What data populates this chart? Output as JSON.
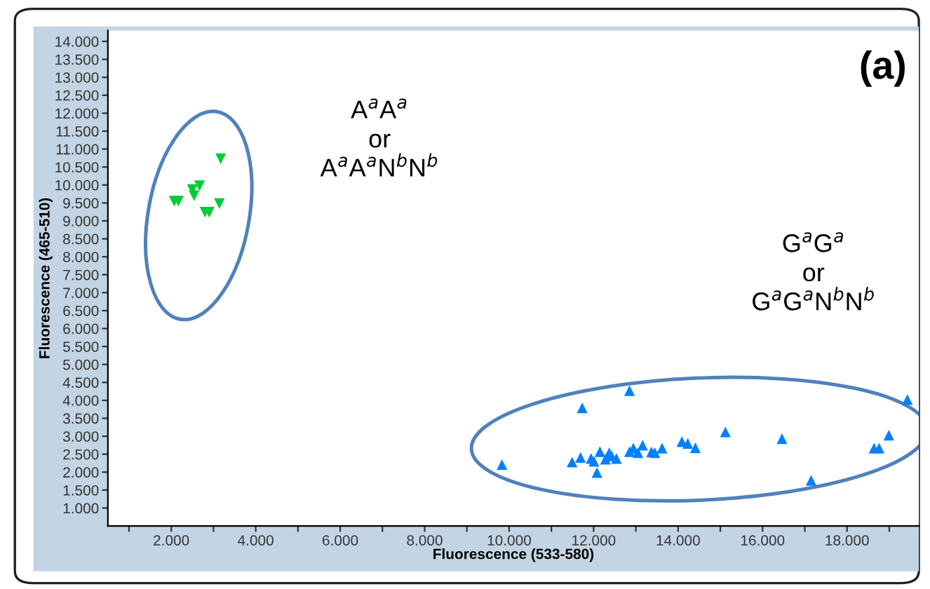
{
  "chart_data": {
    "type": "scatter",
    "xlabel": "Fluorescence (533-580)",
    "ylabel": "Fluorescence (465-510)",
    "xlim": [
      500,
      19700
    ],
    "ylim": [
      500,
      14300
    ],
    "xticks": [
      {
        "value": 1000,
        "label": null
      },
      {
        "value": 2000,
        "label": "2.000"
      },
      {
        "value": 3000,
        "label": null
      },
      {
        "value": 4000,
        "label": "4.000"
      },
      {
        "value": 5000,
        "label": null
      },
      {
        "value": 6000,
        "label": "6.000"
      },
      {
        "value": 7000,
        "label": null
      },
      {
        "value": 8000,
        "label": "8.000"
      },
      {
        "value": 9000,
        "label": null
      },
      {
        "value": 10000,
        "label": "10.000"
      },
      {
        "value": 11000,
        "label": null
      },
      {
        "value": 12000,
        "label": "12.000"
      },
      {
        "value": 13000,
        "label": null
      },
      {
        "value": 14000,
        "label": "14.000"
      },
      {
        "value": 15000,
        "label": null
      },
      {
        "value": 16000,
        "label": "16.000"
      },
      {
        "value": 17000,
        "label": null
      },
      {
        "value": 18000,
        "label": "18.000"
      },
      {
        "value": 19000,
        "label": null
      }
    ],
    "yticks": [
      {
        "value": 1000,
        "label": "1.000"
      },
      {
        "value": 1500,
        "label": "1.500"
      },
      {
        "value": 2000,
        "label": "2.000"
      },
      {
        "value": 2500,
        "label": "2.500"
      },
      {
        "value": 3000,
        "label": "3.000"
      },
      {
        "value": 3500,
        "label": "3.500"
      },
      {
        "value": 4000,
        "label": "4.000"
      },
      {
        "value": 4500,
        "label": "4.500"
      },
      {
        "value": 5000,
        "label": "5.000"
      },
      {
        "value": 5500,
        "label": "5.500"
      },
      {
        "value": 6000,
        "label": "6.000"
      },
      {
        "value": 6500,
        "label": "6.500"
      },
      {
        "value": 7000,
        "label": "7.000"
      },
      {
        "value": 7500,
        "label": "7.500"
      },
      {
        "value": 8000,
        "label": "8.000"
      },
      {
        "value": 8500,
        "label": "8.500"
      },
      {
        "value": 9000,
        "label": "9.000"
      },
      {
        "value": 9500,
        "label": "9.500"
      },
      {
        "value": 10000,
        "label": "10.000"
      },
      {
        "value": 10500,
        "label": "10.500"
      },
      {
        "value": 11000,
        "label": "11.000"
      },
      {
        "value": 11500,
        "label": "11.500"
      },
      {
        "value": 12000,
        "label": "12.000"
      },
      {
        "value": 12500,
        "label": "12.500"
      },
      {
        "value": 13000,
        "label": "13.000"
      },
      {
        "value": 13500,
        "label": "13.500"
      },
      {
        "value": 14000,
        "label": "14.000"
      }
    ],
    "grid": false,
    "legend": false,
    "annotations": [
      "(a)",
      "A$^{a}$A$^{a}$\nor\nA$^{a}$A$^{a}$N$^{b}$N$^{b}$",
      "G$^{a}$G$^{a}$\nor\nG$^{a}$G$^{a}$N$^{b}$N$^{b}$"
    ],
    "series": [
      {
        "color": "#00cc33",
        "marker": "triangle_down",
        "x": [
          3170,
          2170,
          2070,
          2500,
          2670,
          2540,
          2800,
          2900,
          3140
        ],
        "values": [
          10730,
          9550,
          9550,
          9870,
          9980,
          9700,
          9240,
          9240,
          9480
        ]
      },
      {
        "color": "#0080ff",
        "marker": "triangle",
        "x": [
          9830,
          11490,
          11690,
          11730,
          11940,
          12010,
          12080,
          12150,
          12280,
          12370,
          12430,
          12540,
          12850,
          12850,
          12940,
          13050,
          13160,
          13370,
          13450,
          13620,
          14090,
          14230,
          14410,
          15120,
          16460,
          17150,
          18640,
          18760,
          18990,
          19430
        ],
        "values": [
          2210,
          2280,
          2410,
          3790,
          2380,
          2300,
          1990,
          2570,
          2360,
          2540,
          2450,
          2380,
          4270,
          2570,
          2670,
          2540,
          2750,
          2560,
          2540,
          2670,
          2850,
          2800,
          2680,
          3120,
          2930,
          1770,
          2670,
          2670,
          3030,
          4020
        ]
      }
    ]
  }
}
